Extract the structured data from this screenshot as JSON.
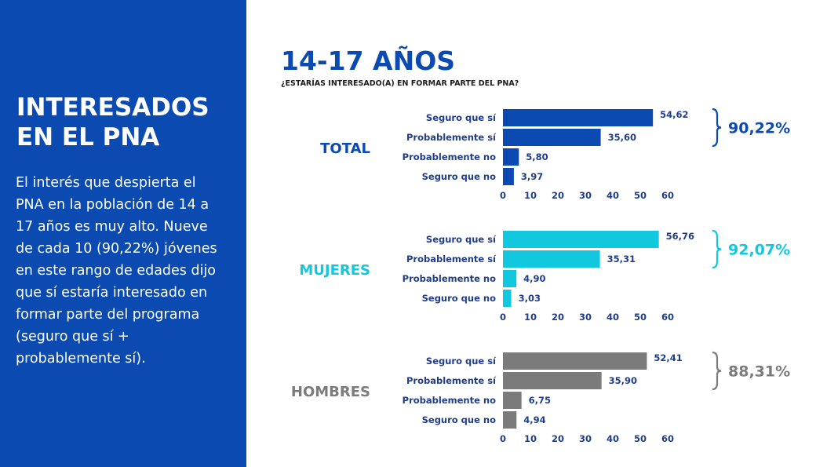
{
  "sidebar": {
    "title": "INTERESADOS EN EL PNA",
    "body": "El interés que despierta el PNA en la población de 14 a 17 años es muy alto. Nueve de cada 10 (90,22%) jóvenes en este rango de edades dijo que sí estaría interesado en formar parte del programa (seguro que sí + probablemente sí).",
    "background": "#0b4ab0"
  },
  "main": {
    "title": "14-17 AÑOS",
    "subtitle": "¿ESTARÍAS INTERESADO(A) EN FORMAR PARTE DEL PNA?"
  },
  "chart_data": [
    {
      "type": "bar",
      "orientation": "horizontal",
      "group": "TOTAL",
      "categories": [
        "Seguro que sí",
        "Probablemente sí",
        "Probablemente no",
        "Seguro que no"
      ],
      "values": [
        54.62,
        35.6,
        5.8,
        3.97
      ],
      "value_labels": [
        "54,62",
        "35,60",
        "5,80",
        "3,97"
      ],
      "summary": "90,22%",
      "xlim": [
        0,
        60
      ],
      "xticks": [
        0,
        10,
        20,
        30,
        40,
        50,
        60
      ],
      "color": "#0b4ab0",
      "summary_color": "#0b4ab0",
      "grid": false
    },
    {
      "type": "bar",
      "orientation": "horizontal",
      "group": "MUJERES",
      "categories": [
        "Seguro que sí",
        "Probablemente sí",
        "Probablemente no",
        "Seguro que no"
      ],
      "values": [
        56.76,
        35.31,
        4.9,
        3.03
      ],
      "value_labels": [
        "56,76",
        "35,31",
        "4,90",
        "3,03"
      ],
      "summary": "92,07%",
      "xlim": [
        0,
        60
      ],
      "xticks": [
        0,
        10,
        20,
        30,
        40,
        50,
        60
      ],
      "color": "#12c8df",
      "summary_color": "#12c8df",
      "grid": false
    },
    {
      "type": "bar",
      "orientation": "horizontal",
      "group": "HOMBRES",
      "categories": [
        "Seguro que sí",
        "Probablemente sí",
        "Probablemente no",
        "Seguro que no"
      ],
      "values": [
        52.41,
        35.9,
        6.75,
        4.94
      ],
      "value_labels": [
        "52,41",
        "35,90",
        "6,75",
        "4,94"
      ],
      "summary": "88,31%",
      "xlim": [
        0,
        60
      ],
      "xticks": [
        0,
        10,
        20,
        30,
        40,
        50,
        60
      ],
      "color": "#7b7b7b",
      "summary_color": "#7b7b7b",
      "grid": false
    }
  ]
}
